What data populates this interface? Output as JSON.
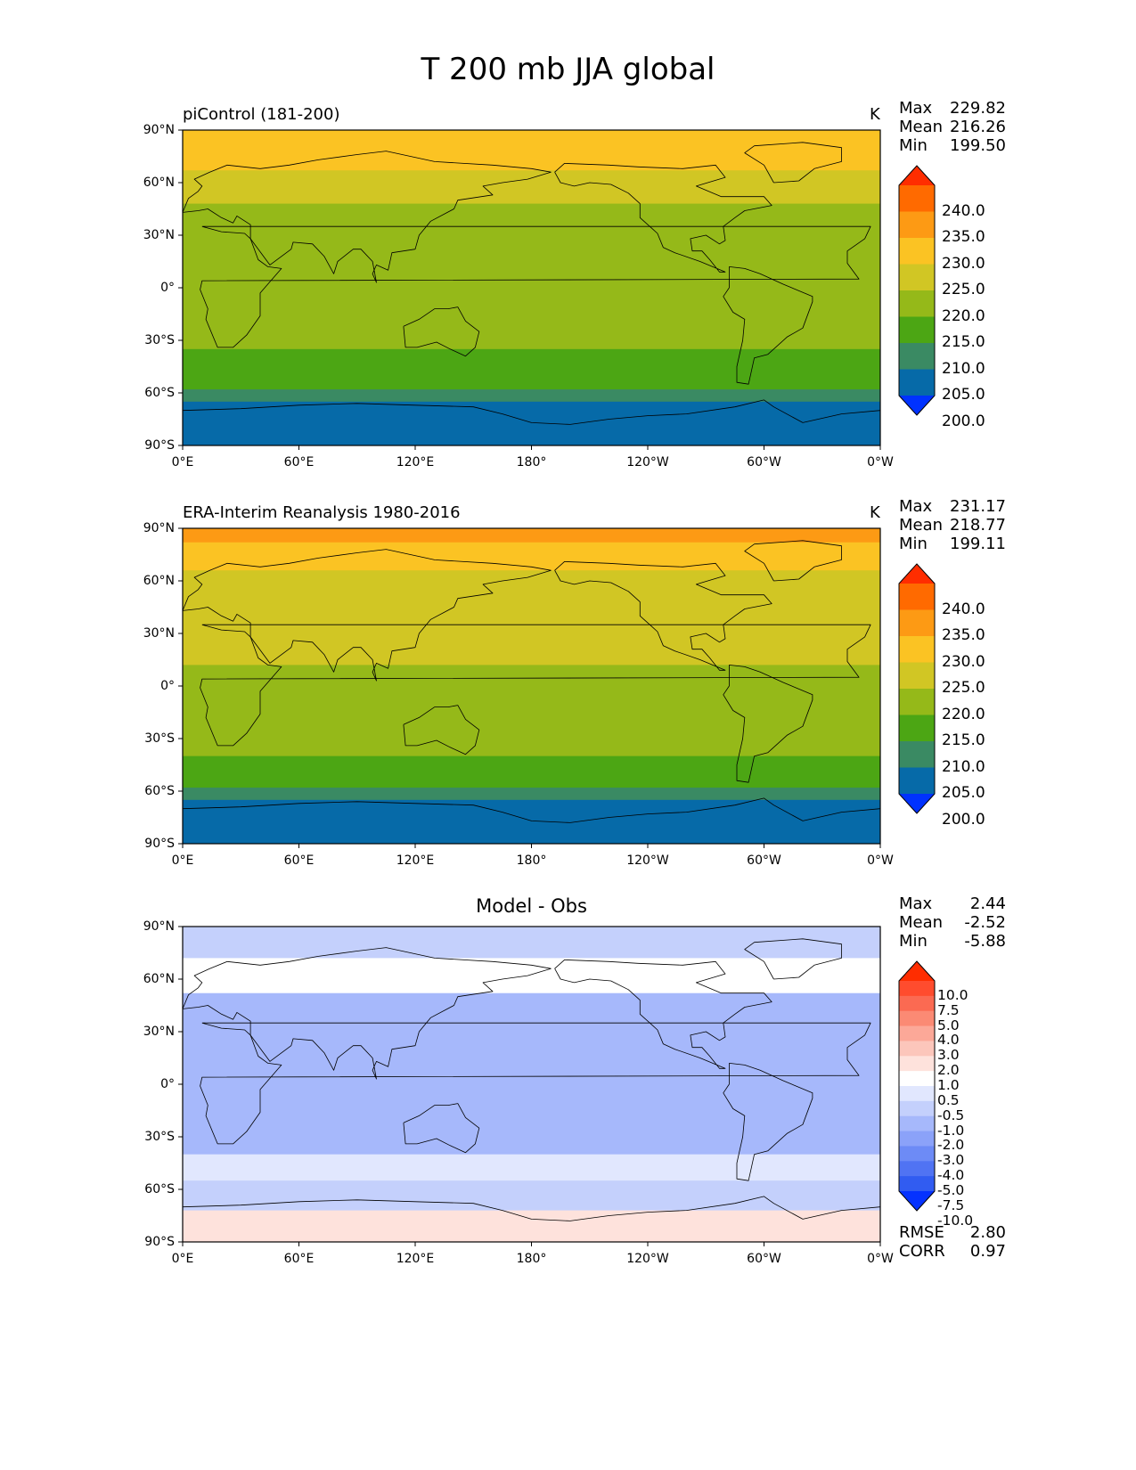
{
  "title": "T 200 mb JJA global",
  "panels": [
    {
      "title": "piControl (181-200)",
      "units": "K",
      "stats": {
        "max_label": "Max",
        "max": "229.82",
        "mean_label": "Mean",
        "mean": "216.26",
        "min_label": "Min",
        "min": "199.50"
      },
      "colorbar": {
        "labels": [
          "240.0",
          "235.0",
          "230.0",
          "225.0",
          "220.0",
          "215.0",
          "210.0",
          "205.0",
          "200.0"
        ],
        "colors": [
          "#ff2d00",
          "#ff6a00",
          "#fd9a14",
          "#fbc323",
          "#d1c624",
          "#95b919",
          "#4ca614",
          "#3a8a63",
          "#066aa8",
          "#0032ff"
        ]
      }
    },
    {
      "title": "ERA-Interim Reanalysis 1980-2016",
      "units": "K",
      "stats": {
        "max_label": "Max",
        "max": "231.17",
        "mean_label": "Mean",
        "mean": "218.77",
        "min_label": "Min",
        "min": "199.11"
      },
      "colorbar": {
        "labels": [
          "240.0",
          "235.0",
          "230.0",
          "225.0",
          "220.0",
          "215.0",
          "210.0",
          "205.0",
          "200.0"
        ],
        "colors": [
          "#ff2d00",
          "#ff6a00",
          "#fd9a14",
          "#fbc323",
          "#d1c624",
          "#95b919",
          "#4ca614",
          "#3a8a63",
          "#066aa8",
          "#0032ff"
        ]
      }
    },
    {
      "title": "Model - Obs",
      "units": "",
      "stats": {
        "max_label": "Max",
        "max": "2.44",
        "mean_label": "Mean",
        "mean": "-2.52",
        "min_label": "Min",
        "min": "-5.88",
        "rmse_label": "RMSE",
        "rmse": "2.80",
        "corr_label": "CORR",
        "corr": "0.97"
      },
      "colorbar": {
        "labels": [
          "10.0",
          "7.5",
          "5.0",
          "4.0",
          "3.0",
          "2.0",
          "1.0",
          "0.5",
          "-0.5",
          "-1.0",
          "-2.0",
          "-3.0",
          "-4.0",
          "-5.0",
          "-7.5",
          "-10.0"
        ],
        "colors": [
          "#ff2d00",
          "#ff4c2e",
          "#fb6a52",
          "#fb8a74",
          "#fca898",
          "#fcc6bb",
          "#fee2dc",
          "#ffffff",
          "#e1e7fe",
          "#c4d0fc",
          "#a6b8fb",
          "#8ba2f9",
          "#6d8bf6",
          "#5073f3",
          "#315cf1",
          "#0532ff"
        ]
      }
    }
  ],
  "axes": {
    "lat_labels": [
      "90°N",
      "60°N",
      "30°N",
      "0°",
      "30°S",
      "60°S",
      "90°S"
    ],
    "lon_labels": [
      "0°E",
      "60°E",
      "120°E",
      "180°",
      "120°W",
      "60°W",
      "0°W"
    ]
  },
  "map_fields": {
    "panel1_bands": [
      {
        "lat_from": 90,
        "lat_to": 67,
        "value_range": "225-230"
      },
      {
        "lat_from": 67,
        "lat_to": 48,
        "value_range": "220-225"
      },
      {
        "lat_from": 48,
        "lat_to": -35,
        "value_range": "215-220"
      },
      {
        "lat_from": -35,
        "lat_to": -58,
        "value_range": "210-215"
      },
      {
        "lat_from": -58,
        "lat_to": -65,
        "value_range": "205-210"
      },
      {
        "lat_from": -65,
        "lat_to": -90,
        "value_range": "200-205"
      }
    ],
    "panel2_bands": [
      {
        "lat_from": 90,
        "lat_to": 82,
        "value_range": "230-235"
      },
      {
        "lat_from": 82,
        "lat_to": 66,
        "value_range": "225-230"
      },
      {
        "lat_from": 66,
        "lat_to": 12,
        "value_range": "220-225"
      },
      {
        "lat_from": 12,
        "lat_to": -40,
        "value_range": "215-220"
      },
      {
        "lat_from": -40,
        "lat_to": -58,
        "value_range": "210-215"
      },
      {
        "lat_from": -58,
        "lat_to": -65,
        "value_range": "205-210"
      },
      {
        "lat_from": -65,
        "lat_to": -90,
        "value_range": "200-205"
      }
    ],
    "panel3_bands": [
      {
        "lat_from": 90,
        "lat_to": 72,
        "value_range": "-2.0 to -1.0"
      },
      {
        "lat_from": 72,
        "lat_to": 52,
        "value_range": "-0.5 to 0.5"
      },
      {
        "lat_from": 52,
        "lat_to": -40,
        "value_range": "-3.0 to -2.0"
      },
      {
        "lat_from": -40,
        "lat_to": -55,
        "value_range": "-1.0 to -0.5"
      },
      {
        "lat_from": -55,
        "lat_to": -72,
        "value_range": "-2.0 to -1.0"
      },
      {
        "lat_from": -72,
        "lat_to": -90,
        "value_range": "0.5 to 1.0"
      }
    ]
  }
}
